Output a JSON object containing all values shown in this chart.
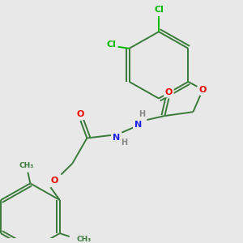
{
  "bg_color": "#e8e8e8",
  "bond_color": "#3a7a3a",
  "bond_width": 1.4,
  "atom_colors": {
    "Cl": "#00bb00",
    "O": "#ee0000",
    "N": "#2222ee",
    "C": "#3a7a3a",
    "H": "#888888"
  },
  "figsize": [
    3.0,
    3.0
  ],
  "dpi": 100
}
